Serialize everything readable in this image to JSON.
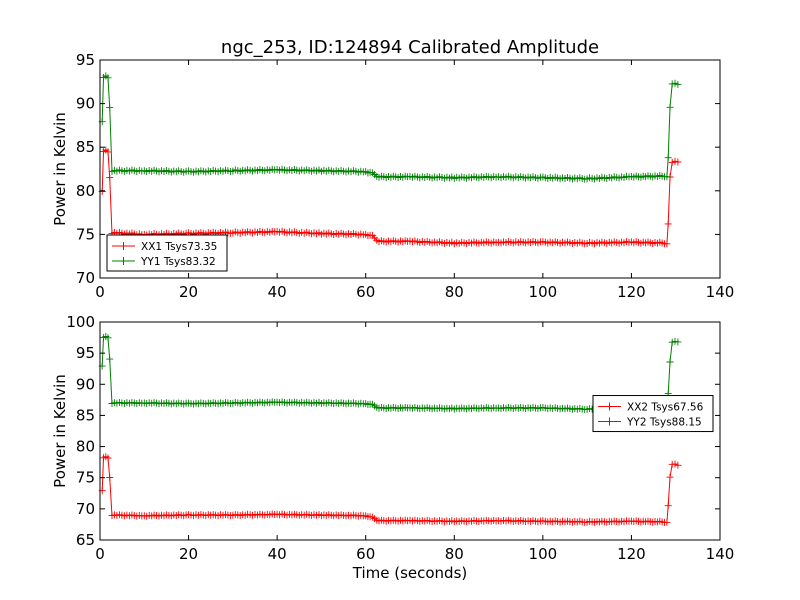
{
  "title": "ngc_253, ID:124894 Calibrated Amplitude",
  "colors": {
    "xx": "#ff0000",
    "yy": "#008000"
  },
  "chart_data": [
    {
      "type": "line",
      "xlabel": "",
      "ylabel": "Power in Kelvin",
      "xlim": [
        0,
        140
      ],
      "ylim": [
        70,
        95
      ],
      "xticks": [
        "0",
        "20",
        "40",
        "60",
        "80",
        "100",
        "120",
        "140"
      ],
      "yticks": [
        "70",
        "75",
        "80",
        "85",
        "90",
        "95"
      ],
      "legend_position": "lower-left",
      "series": [
        {
          "name": "XX1 Tsys73.35",
          "color": "#ff0000",
          "points": [
            [
              0.5,
              80
            ],
            [
              0.8,
              84.5
            ],
            [
              1.3,
              84.6
            ],
            [
              1.8,
              84.5
            ],
            [
              2.2,
              81.5
            ],
            [
              2.7,
              75.2
            ],
            [
              10,
              75.0
            ],
            [
              20,
              75.1
            ],
            [
              30,
              75.2
            ],
            [
              40,
              75.3
            ],
            [
              50,
              75.1
            ],
            [
              60,
              75.0
            ],
            [
              61.5,
              74.8
            ],
            [
              63,
              74.2
            ],
            [
              70,
              74.2
            ],
            [
              80,
              74.0
            ],
            [
              90,
              74.1
            ],
            [
              100,
              74.1
            ],
            [
              110,
              74.0
            ],
            [
              120,
              74.1
            ],
            [
              128,
              74.0
            ],
            [
              128.3,
              76.2
            ],
            [
              128.7,
              81.5
            ],
            [
              129.2,
              83.3
            ],
            [
              130.5,
              83.3
            ]
          ]
        },
        {
          "name": "YY1 Tsys83.32",
          "color": "#008000",
          "points": [
            [
              0.5,
              88
            ],
            [
              0.8,
              93.0
            ],
            [
              1.3,
              93.1
            ],
            [
              1.8,
              93.0
            ],
            [
              2.2,
              89.5
            ],
            [
              2.7,
              82.3
            ],
            [
              10,
              82.3
            ],
            [
              20,
              82.2
            ],
            [
              30,
              82.3
            ],
            [
              40,
              82.4
            ],
            [
              50,
              82.3
            ],
            [
              60,
              82.2
            ],
            [
              61.5,
              82.0
            ],
            [
              63,
              81.6
            ],
            [
              70,
              81.6
            ],
            [
              80,
              81.5
            ],
            [
              90,
              81.6
            ],
            [
              100,
              81.5
            ],
            [
              110,
              81.4
            ],
            [
              120,
              81.6
            ],
            [
              128,
              81.7
            ],
            [
              128.3,
              83.8
            ],
            [
              128.7,
              89.5
            ],
            [
              129.2,
              92.3
            ],
            [
              130.5,
              92.2
            ]
          ]
        }
      ]
    },
    {
      "type": "line",
      "xlabel": "Time (seconds)",
      "ylabel": "Power in Kelvin",
      "xlim": [
        0,
        140
      ],
      "ylim": [
        65,
        100
      ],
      "xticks": [
        "0",
        "20",
        "40",
        "60",
        "80",
        "100",
        "120",
        "140"
      ],
      "yticks": [
        "65",
        "70",
        "75",
        "80",
        "85",
        "90",
        "95",
        "100"
      ],
      "legend_position": "right",
      "series": [
        {
          "name": "XX2 Tsys67.56",
          "color": "#ff0000",
          "points": [
            [
              0.5,
              73
            ],
            [
              0.8,
              78.2
            ],
            [
              1.3,
              78.3
            ],
            [
              1.8,
              78.2
            ],
            [
              2.2,
              75.0
            ],
            [
              2.7,
              69.0
            ],
            [
              10,
              68.9
            ],
            [
              20,
              69.0
            ],
            [
              30,
              69.0
            ],
            [
              40,
              69.1
            ],
            [
              50,
              69.0
            ],
            [
              60,
              68.9
            ],
            [
              61.5,
              68.6
            ],
            [
              63,
              68.1
            ],
            [
              70,
              68.1
            ],
            [
              80,
              68.0
            ],
            [
              90,
              68.1
            ],
            [
              100,
              68.0
            ],
            [
              110,
              67.9
            ],
            [
              120,
              68.0
            ],
            [
              128,
              67.9
            ],
            [
              128.3,
              70.5
            ],
            [
              128.7,
              75.0
            ],
            [
              129.2,
              77.2
            ],
            [
              130.5,
              77.0
            ]
          ]
        },
        {
          "name": "YY2 Tsys88.15",
          "color": "#008000",
          "points": [
            [
              0.5,
              93
            ],
            [
              0.8,
              97.5
            ],
            [
              1.3,
              97.6
            ],
            [
              1.8,
              97.5
            ],
            [
              2.2,
              94.0
            ],
            [
              2.7,
              87.0
            ],
            [
              10,
              87.0
            ],
            [
              20,
              86.9
            ],
            [
              30,
              87.0
            ],
            [
              40,
              87.1
            ],
            [
              50,
              87.0
            ],
            [
              60,
              86.9
            ],
            [
              61.5,
              86.7
            ],
            [
              63,
              86.2
            ],
            [
              70,
              86.2
            ],
            [
              80,
              86.1
            ],
            [
              90,
              86.2
            ],
            [
              100,
              86.2
            ],
            [
              110,
              86.0
            ],
            [
              120,
              86.2
            ],
            [
              128,
              86.3
            ],
            [
              128.3,
              88.5
            ],
            [
              128.7,
              93.5
            ],
            [
              129.2,
              96.8
            ],
            [
              130.5,
              96.8
            ]
          ]
        }
      ]
    }
  ]
}
